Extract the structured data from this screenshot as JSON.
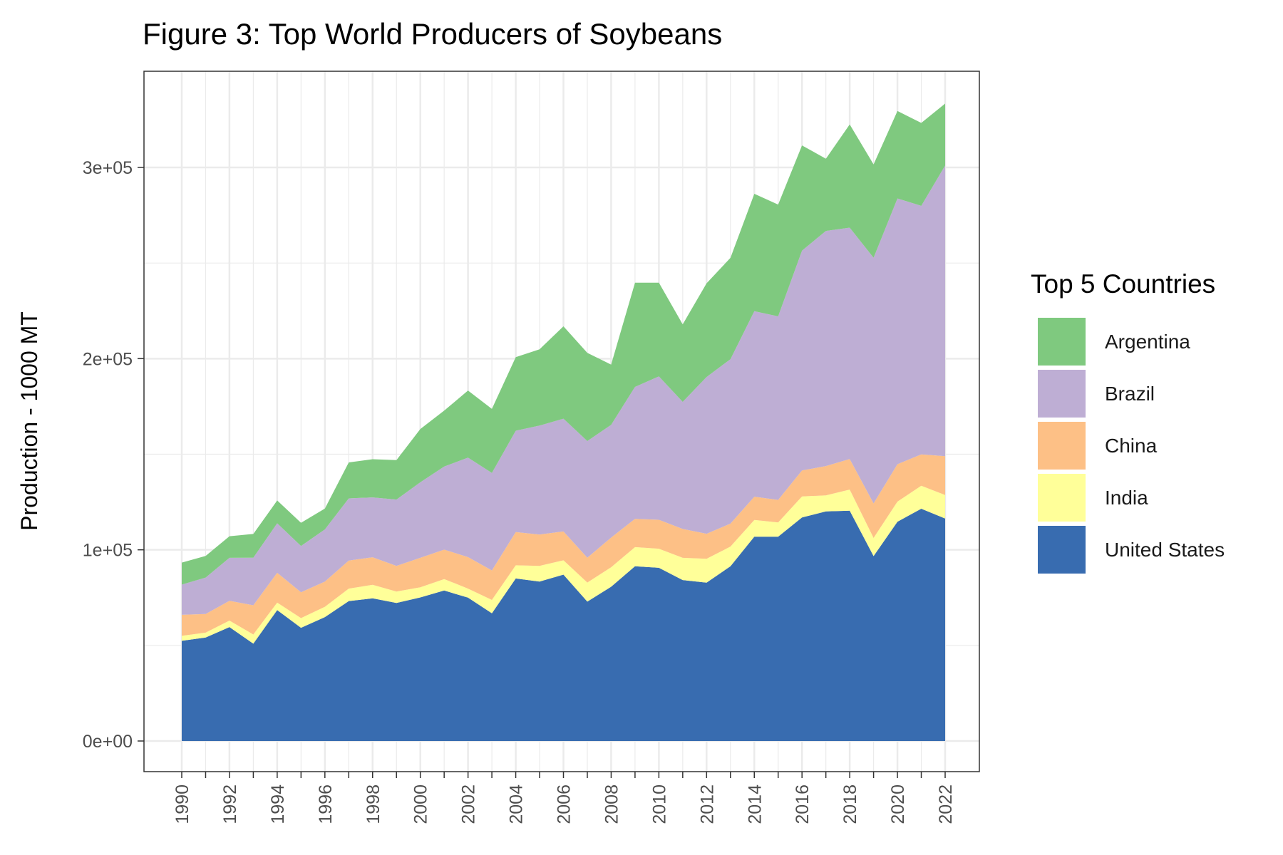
{
  "chart_data": {
    "type": "area",
    "stacked": true,
    "title": "Figure 3: Top World Producers of Soybeans",
    "xlabel": "",
    "ylabel": "Production - 1000 MT",
    "xlim": [
      1990,
      2022
    ],
    "ylim": [
      0,
      340000
    ],
    "x": [
      1990,
      1991,
      1992,
      1993,
      1994,
      1995,
      1996,
      1997,
      1998,
      1999,
      2000,
      2001,
      2002,
      2003,
      2004,
      2005,
      2006,
      2007,
      2008,
      2009,
      2010,
      2011,
      2012,
      2013,
      2014,
      2015,
      2016,
      2017,
      2018,
      2019,
      2020,
      2021,
      2022
    ],
    "x_tick_labels": [
      "1990",
      "1992",
      "1994",
      "1996",
      "1998",
      "2000",
      "2002",
      "2004",
      "2006",
      "2008",
      "2010",
      "2012",
      "2014",
      "2016",
      "2018",
      "2020",
      "2022"
    ],
    "y_ticks": [
      0,
      100000,
      200000,
      300000
    ],
    "y_tick_labels": [
      "0e+00",
      "1e+05",
      "2e+05",
      "3e+05"
    ],
    "grid": true,
    "legend": {
      "title": "Top 5 Countries",
      "position": "right",
      "entries": [
        "Argentina",
        "Brazil",
        "China",
        "India",
        "United States"
      ]
    },
    "series": [
      {
        "name": "United States",
        "color": "#386cb0",
        "values": [
          52400,
          54100,
          59600,
          50900,
          68500,
          59200,
          64800,
          73200,
          74600,
          72200,
          75100,
          78700,
          75000,
          66800,
          85000,
          83400,
          87000,
          72900,
          80700,
          91400,
          90600,
          84200,
          82800,
          91400,
          106900,
          106900,
          116900,
          120100,
          120500,
          96700,
          114700,
          121500,
          116400
        ]
      },
      {
        "name": "India",
        "color": "#ffff99",
        "values": [
          2600,
          2600,
          3400,
          4800,
          3900,
          5100,
          5400,
          6500,
          7100,
          6000,
          5300,
          6000,
          4700,
          7000,
          6900,
          8200,
          7500,
          10000,
          10200,
          10000,
          10000,
          11600,
          12500,
          10300,
          8700,
          7400,
          11000,
          8400,
          11000,
          9500,
          10500,
          12000,
          12300
        ]
      },
      {
        "name": "China",
        "color": "#fdc086",
        "values": [
          11000,
          9700,
          10300,
          15300,
          15600,
          13500,
          13200,
          14700,
          14400,
          13400,
          15400,
          15400,
          16500,
          15400,
          17400,
          16400,
          15100,
          13000,
          15500,
          14800,
          15100,
          15100,
          13100,
          12000,
          12200,
          11800,
          13600,
          15300,
          16000,
          18100,
          19600,
          16400,
          20300
        ]
      },
      {
        "name": "Brazil",
        "color": "#beaed4",
        "values": [
          15800,
          19100,
          22500,
          24900,
          25900,
          24200,
          27300,
          32500,
          31300,
          34700,
          39500,
          43500,
          52000,
          51000,
          53000,
          57000,
          59000,
          61000,
          59000,
          69000,
          75000,
          66500,
          82000,
          86000,
          97000,
          96000,
          115000,
          123000,
          121000,
          128500,
          139000,
          130000,
          152000
        ]
      },
      {
        "name": "Argentina",
        "color": "#7fc97f",
        "values": [
          11500,
          11300,
          11300,
          12400,
          11900,
          12100,
          10900,
          18800,
          20000,
          20600,
          27900,
          29200,
          35100,
          33500,
          38500,
          39900,
          48300,
          46100,
          31500,
          54500,
          49000,
          40500,
          49000,
          53000,
          61400,
          58500,
          55000,
          37800,
          54000,
          48800,
          45700,
          43400,
          32400
        ]
      }
    ]
  }
}
